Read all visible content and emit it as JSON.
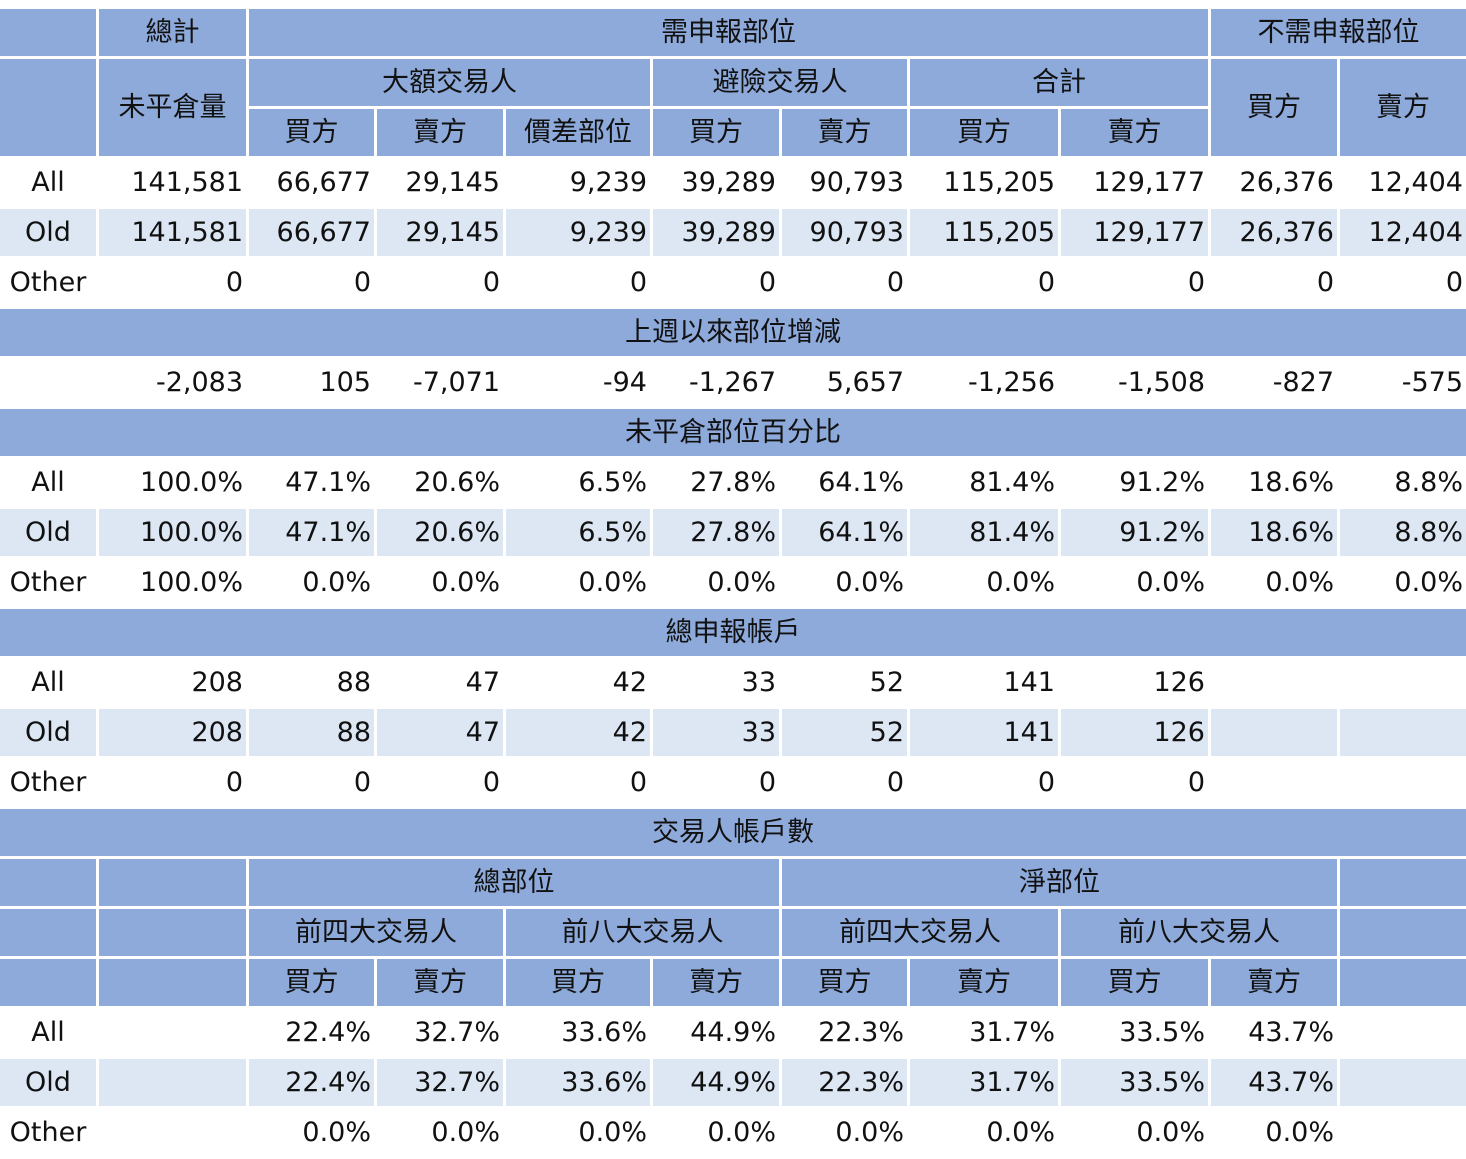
{
  "header": {
    "total": "總計",
    "reportable": "需申報部位",
    "nonreportable": "不需申報部位",
    "open_interest": "未平倉量",
    "large_traders": "大額交易人",
    "hedgers": "避險交易人",
    "subtotal": "合計",
    "buy": "買方",
    "sell": "賣方",
    "spread": "價差部位"
  },
  "positions": {
    "rows": [
      {
        "label": "All",
        "values": [
          "141,581",
          "66,677",
          "29,145",
          "9,239",
          "39,289",
          "90,793",
          "115,205",
          "129,177",
          "26,376",
          "12,404"
        ]
      },
      {
        "label": "Old",
        "values": [
          "141,581",
          "66,677",
          "29,145",
          "9,239",
          "39,289",
          "90,793",
          "115,205",
          "129,177",
          "26,376",
          "12,404"
        ]
      },
      {
        "label": "Other",
        "values": [
          "0",
          "0",
          "0",
          "0",
          "0",
          "0",
          "0",
          "0",
          "0",
          "0"
        ]
      }
    ]
  },
  "changes": {
    "title": "上週以來部位增減",
    "values": [
      "-2,083",
      "105",
      "-7,071",
      "-94",
      "-1,267",
      "5,657",
      "-1,256",
      "-1,508",
      "-827",
      "-575"
    ]
  },
  "percent": {
    "title": "未平倉部位百分比",
    "rows": [
      {
        "label": "All",
        "values": [
          "100.0%",
          "47.1%",
          "20.6%",
          "6.5%",
          "27.8%",
          "64.1%",
          "81.4%",
          "91.2%",
          "18.6%",
          "8.8%"
        ]
      },
      {
        "label": "Old",
        "values": [
          "100.0%",
          "47.1%",
          "20.6%",
          "6.5%",
          "27.8%",
          "64.1%",
          "81.4%",
          "91.2%",
          "18.6%",
          "8.8%"
        ]
      },
      {
        "label": "Other",
        "values": [
          "100.0%",
          "0.0%",
          "0.0%",
          "0.0%",
          "0.0%",
          "0.0%",
          "0.0%",
          "0.0%",
          "0.0%",
          "0.0%"
        ]
      }
    ]
  },
  "accounts": {
    "title": "總申報帳戶",
    "rows": [
      {
        "label": "All",
        "values": [
          "208",
          "88",
          "47",
          "42",
          "33",
          "52",
          "141",
          "126"
        ]
      },
      {
        "label": "Old",
        "values": [
          "208",
          "88",
          "47",
          "42",
          "33",
          "52",
          "141",
          "126"
        ]
      },
      {
        "label": "Other",
        "values": [
          "0",
          "0",
          "0",
          "0",
          "0",
          "0",
          "0",
          "0"
        ]
      }
    ]
  },
  "concentration": {
    "title": "交易人帳戶數",
    "gross": "總部位",
    "net": "淨部位",
    "top4": "前四大交易人",
    "top8": "前八大交易人",
    "rows": [
      {
        "label": "All",
        "values": [
          "22.4%",
          "32.7%",
          "33.6%",
          "44.9%",
          "22.3%",
          "31.7%",
          "33.5%",
          "43.7%"
        ]
      },
      {
        "label": "Old",
        "values": [
          "22.4%",
          "32.7%",
          "33.6%",
          "44.9%",
          "22.3%",
          "31.7%",
          "33.5%",
          "43.7%"
        ]
      },
      {
        "label": "Other",
        "values": [
          "0.0%",
          "0.0%",
          "0.0%",
          "0.0%",
          "0.0%",
          "0.0%",
          "0.0%",
          "0.0%"
        ]
      }
    ]
  }
}
